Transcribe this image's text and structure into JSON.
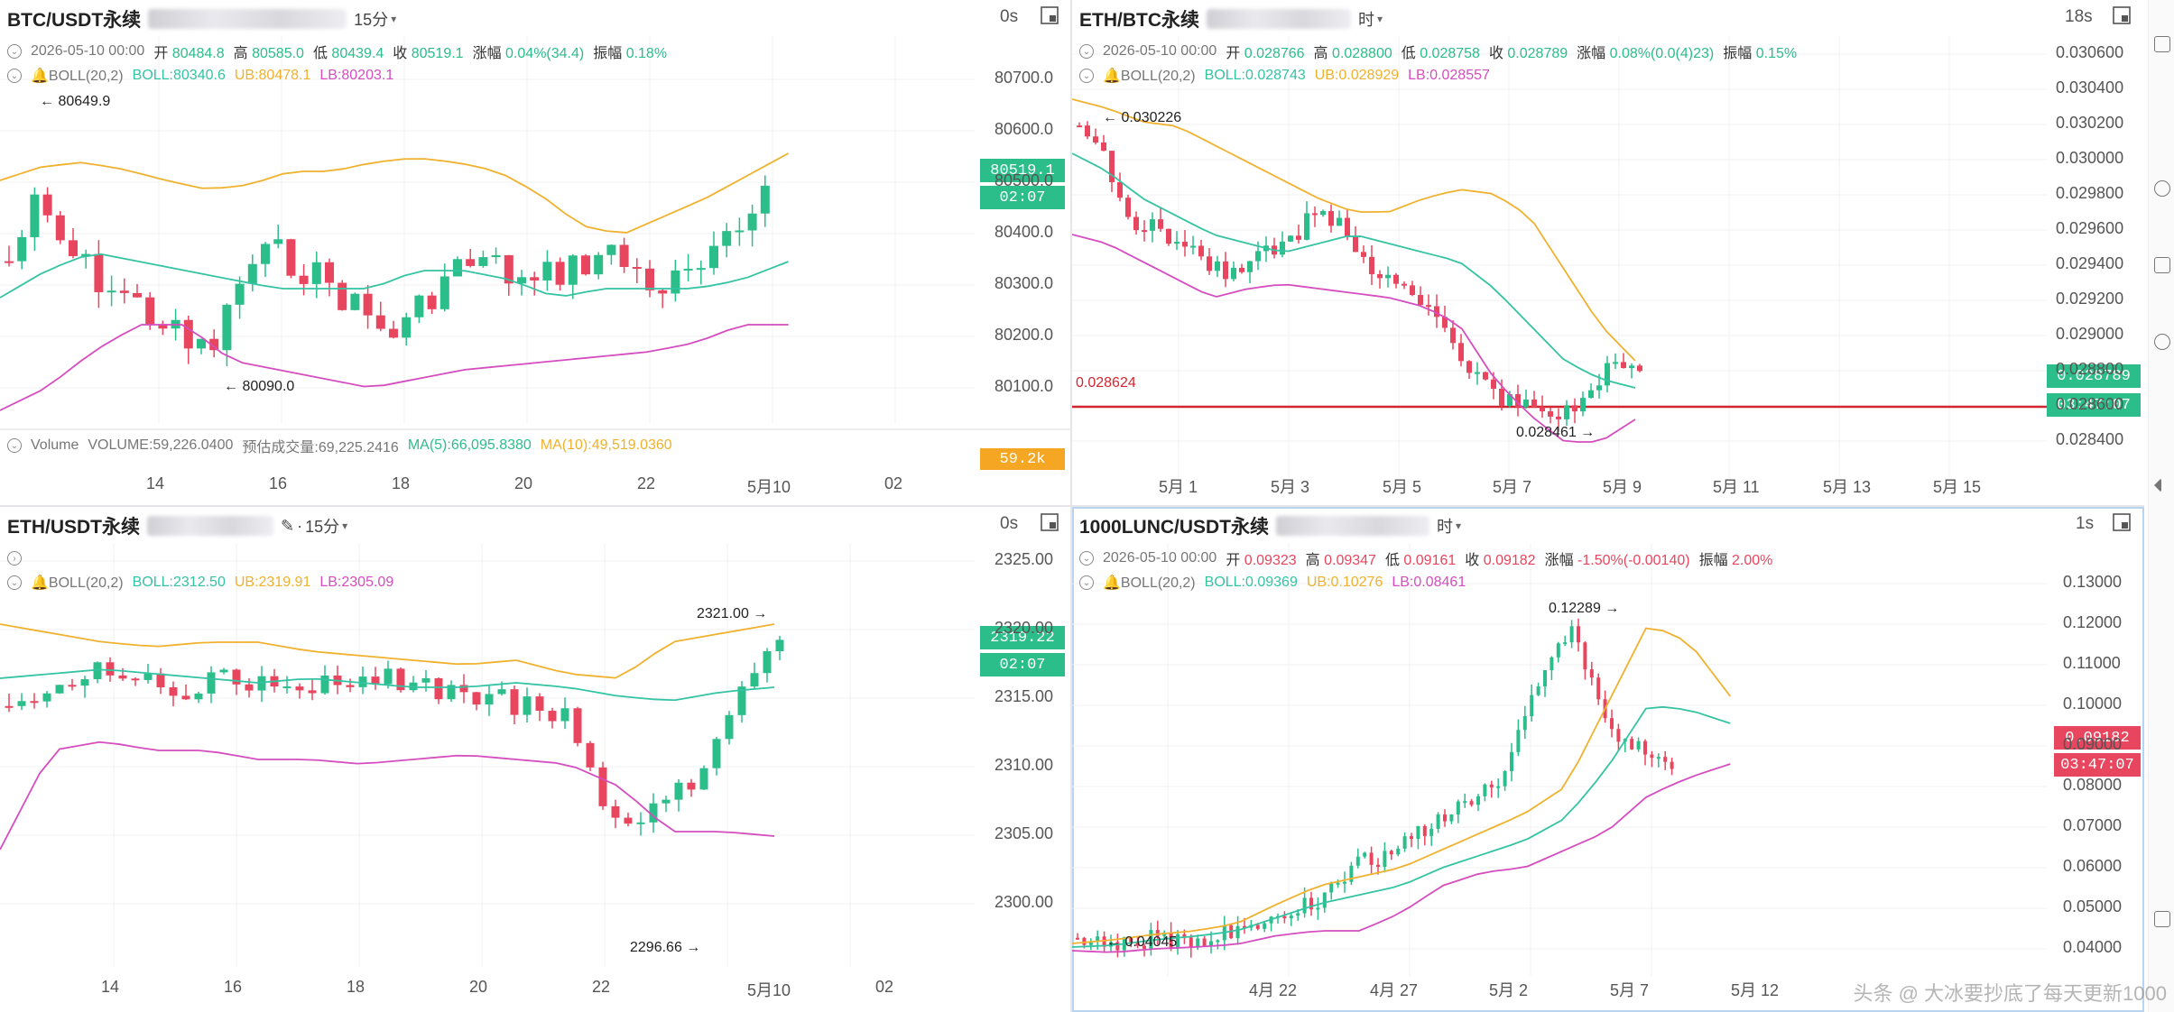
{
  "colors": {
    "up": "#2bbd8a",
    "down": "#e8455e",
    "boll_mid": "#34c3a3",
    "boll_up": "#f0b12e",
    "boll_lo": "#d54dbf",
    "grid": "#f0f0f2",
    "vol_tag": "#f5a623",
    "ref_line": "#d2252f"
  },
  "icons": {
    "settings": "chevron-circle-icon",
    "boll": "bell-icon",
    "maximize": "maximize-icon",
    "eye": "eye-icon"
  },
  "p1": {
    "symbol": "BTC/USDT永续",
    "timeframe": "15分",
    "seconds": "0s",
    "ohlc": {
      "date": "2026-05-10 00:00",
      "open_label": "开",
      "open": "80484.8",
      "high_label": "高",
      "high": "80585.0",
      "low_label": "低",
      "low": "80439.4",
      "close_label": "收",
      "close": "80519.1",
      "chg_label": "涨幅",
      "chg": "0.04%(34.4)",
      "amp_label": "振幅",
      "amp": "0.18%"
    },
    "boll": {
      "name": "BOLL(20,2)",
      "mid": "BOLL:80340.6",
      "ub": "UB:80478.1",
      "lb": "LB:80203.1"
    },
    "yticks": [
      "80700.0",
      "80600.0",
      "80500.0",
      "80400.0",
      "80300.0",
      "80200.0",
      "80100.0"
    ],
    "price_tag": "80519.1",
    "time_tag": "02:07",
    "hi_ann": "80649.9",
    "lo_ann": "80090.0",
    "volume": {
      "label": "Volume",
      "vol": "VOLUME:59,226.0400",
      "est": "预估成交量:69,225.2416",
      "ma5": "MA(5):66,095.8380",
      "ma10": "MA(10):49,519.0360",
      "tag": "59.2k"
    },
    "xticks": [
      "14",
      "16",
      "18",
      "20",
      "22",
      "5月10",
      "02"
    ]
  },
  "p2": {
    "symbol": "ETH/BTC永续",
    "timeframe": "时",
    "seconds": "18s",
    "ohlc": {
      "date": "2026-05-10 00:00",
      "open_label": "开",
      "open": "0.028766",
      "high_label": "高",
      "high": "0.028800",
      "low_label": "低",
      "low": "0.028758",
      "close_label": "收",
      "close": "0.028789",
      "chg_label": "涨幅",
      "chg": "0.08%(0.0(4)23)",
      "amp_label": "振幅",
      "amp": "0.15%"
    },
    "boll": {
      "name": "BOLL(20,2)",
      "mid": "BOLL:0.028743",
      "ub": "UB:0.028929",
      "lb": "LB:0.028557"
    },
    "yticks": [
      "0.030600",
      "0.030400",
      "0.030200",
      "0.030000",
      "0.029800",
      "0.029600",
      "0.029400",
      "0.029200",
      "0.029000",
      "0.028800",
      "0.028600",
      "0.028400"
    ],
    "price_tag": "0.028789",
    "time_tag": "03:47:07",
    "hi_ann": "0.030226",
    "lo_ann": "0.028461",
    "ref_price": "0.028624",
    "xticks": [
      "5月 1",
      "5月 3",
      "5月 5",
      "5月 7",
      "5月 9",
      "5月 11",
      "5月 13",
      "5月 15"
    ]
  },
  "p3": {
    "symbol": "ETH/USDT永续",
    "timeframe": "15分",
    "seconds": "0s",
    "boll": {
      "name": "BOLL(20,2)",
      "mid": "BOLL:2312.50",
      "ub": "UB:2319.91",
      "lb": "LB:2305.09"
    },
    "yticks": [
      "2325.00",
      "2320.00",
      "2315.00",
      "2310.00",
      "2305.00",
      "2300.00"
    ],
    "price_tag": "2319.22",
    "time_tag": "02:07",
    "hi_ann": "2321.00",
    "lo_ann": "2296.66",
    "xticks": [
      "14",
      "16",
      "18",
      "20",
      "22",
      "5月10",
      "02"
    ]
  },
  "p4": {
    "symbol": "1000LUNC/USDT永续",
    "timeframe": "时",
    "seconds": "1s",
    "ohlc": {
      "date": "2026-05-10 00:00",
      "open_label": "开",
      "open": "0.09323",
      "high_label": "高",
      "high": "0.09347",
      "low_label": "低",
      "low": "0.09161",
      "close_label": "收",
      "close": "0.09182",
      "chg_label": "涨幅",
      "chg": "-1.50%(-0.00140)",
      "amp_label": "振幅",
      "amp": "2.00%"
    },
    "boll": {
      "name": "BOLL(20,2)",
      "mid": "BOLL:0.09369",
      "ub": "UB:0.10276",
      "lb": "LB:0.08461"
    },
    "yticks": [
      "0.13000",
      "0.12000",
      "0.11000",
      "0.10000",
      "0.09000",
      "0.08000",
      "0.07000",
      "0.06000",
      "0.05000",
      "0.04000"
    ],
    "price_tag": "0.09182",
    "time_tag": "03:47:07",
    "hi_ann": "0.12289",
    "lo_ann": "0.04045",
    "xticks": [
      "4月 22",
      "4月 27",
      "5月 2",
      "5月 7",
      "5月 12"
    ]
  },
  "watermark": "头条 @ 大冰要抄底了每天更新1000"
}
